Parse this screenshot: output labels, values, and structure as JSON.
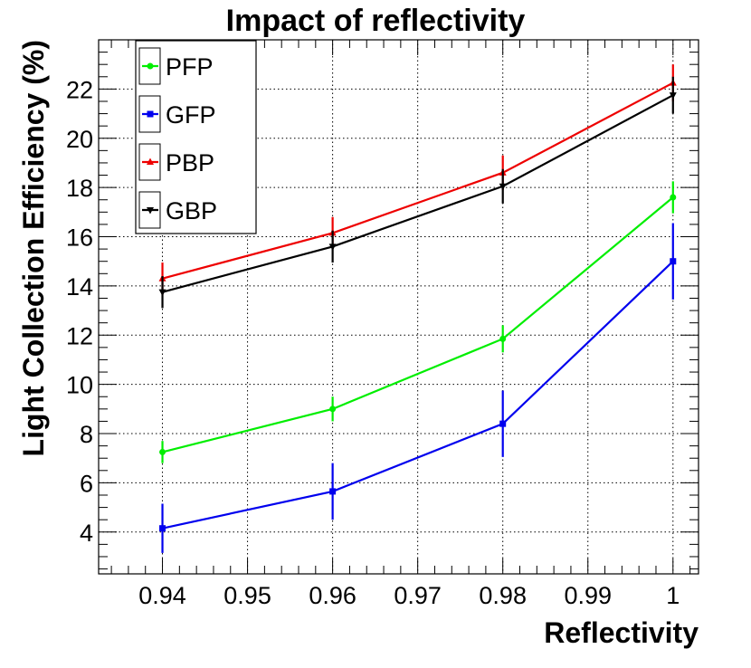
{
  "chart_data": {
    "type": "line",
    "title": "Impact of reflectivity",
    "xlabel": "Reflectivity",
    "ylabel": "Light Collection Efficiency (%)",
    "xlim": [
      0.9325,
      1.003
    ],
    "ylim": [
      2.3,
      24.0
    ],
    "x_ticks": [
      0.94,
      0.95,
      0.96,
      0.97,
      0.98,
      0.99,
      1
    ],
    "x_tick_labels": [
      "0.94",
      "0.95",
      "0.96",
      "0.97",
      "0.98",
      "0.99",
      "1"
    ],
    "y_ticks": [
      4,
      6,
      8,
      10,
      12,
      14,
      16,
      18,
      20,
      22
    ],
    "y_tick_labels": [
      "4",
      "6",
      "8",
      "10",
      "12",
      "14",
      "16",
      "18",
      "20",
      "22"
    ],
    "grid": true,
    "legend_position": "top-left",
    "x": [
      0.94,
      0.96,
      0.98,
      1.0
    ],
    "series": [
      {
        "name": "PFP",
        "color": "#00ee00",
        "marker": "circle",
        "values": [
          7.25,
          9.0,
          11.85,
          17.6
        ],
        "errors": [
          0.45,
          0.5,
          0.55,
          0.65
        ]
      },
      {
        "name": "GFP",
        "color": "#0000ee",
        "marker": "square",
        "values": [
          4.15,
          5.65,
          8.4,
          15.0
        ],
        "errors": [
          1.0,
          1.15,
          1.35,
          1.55
        ]
      },
      {
        "name": "PBP",
        "color": "#ee0000",
        "marker": "triangle-up",
        "values": [
          14.3,
          16.15,
          18.6,
          22.25
        ],
        "errors": [
          0.65,
          0.65,
          0.7,
          0.75
        ]
      },
      {
        "name": "GBP",
        "color": "#000000",
        "marker": "triangle-down",
        "values": [
          13.75,
          15.6,
          18.05,
          21.75
        ],
        "errors": [
          0.65,
          0.65,
          0.7,
          0.75
        ]
      }
    ]
  }
}
